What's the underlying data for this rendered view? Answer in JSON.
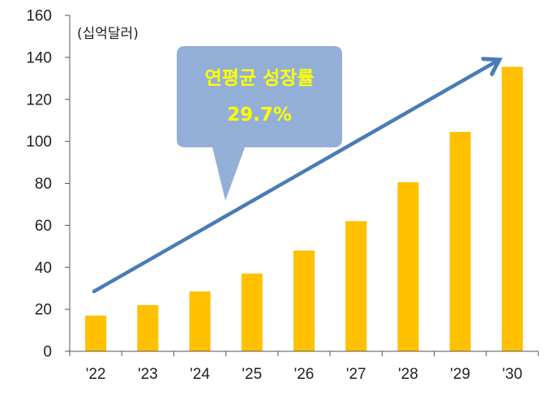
{
  "chart_data": {
    "type": "bar",
    "categories": [
      "'22",
      "'23",
      "'24",
      "'25",
      "'26",
      "'27",
      "'28",
      "'29",
      "'30"
    ],
    "values": [
      17,
      22,
      28.5,
      37,
      48,
      62,
      80.5,
      104.5,
      135.5
    ],
    "yticks": [
      "0",
      "20",
      "40",
      "60",
      "80",
      "100",
      "120",
      "140",
      "160"
    ],
    "ylim": [
      0,
      160
    ],
    "unit_label": "(십억달러)",
    "grid": false,
    "annotation": {
      "line1": "연평균 성장률",
      "line2": "29.7%"
    },
    "colors": {
      "bar": "#FFC000",
      "arrow": "#4A7BB7",
      "callout_fill": "#93AFD8",
      "callout_text": "#FFFF00",
      "axis": "#555555"
    }
  }
}
